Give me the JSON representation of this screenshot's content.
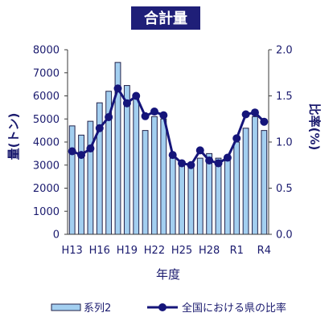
{
  "chart_data": {
    "type": "bar",
    "title": "合計量",
    "xlabel": "年度",
    "ylabel": "量(トン)",
    "y2label": "比率(%)",
    "categories": [
      "H13",
      "",
      "",
      "H16",
      "",
      "",
      "H19",
      "",
      "",
      "H22",
      "",
      "",
      "H25",
      "",
      "",
      "H28",
      "",
      "",
      "R1",
      "",
      "",
      "R4"
    ],
    "series": [
      {
        "name": "系列2",
        "type": "bar",
        "axis": "left",
        "values": [
          4700,
          4300,
          4900,
          5700,
          6200,
          7450,
          6450,
          5900,
          4500,
          5100,
          5000,
          3300,
          3100,
          3000,
          3300,
          3500,
          3300,
          3300,
          4000,
          4600,
          5100,
          4500
        ]
      },
      {
        "name": "全国における県の比率",
        "type": "line",
        "axis": "right",
        "values": [
          0.9,
          0.86,
          0.93,
          1.15,
          1.27,
          1.58,
          1.42,
          1.5,
          1.28,
          1.33,
          1.29,
          0.86,
          0.77,
          0.75,
          0.91,
          0.8,
          0.77,
          0.83,
          1.04,
          1.3,
          1.32,
          1.22
        ]
      }
    ],
    "ylim": [
      0,
      8000
    ],
    "y2lim": [
      0,
      2.0
    ],
    "y_ticks": [
      "0",
      "1000",
      "2000",
      "3000",
      "4000",
      "5000",
      "6000",
      "7000",
      "8000"
    ],
    "y2_ticks": [
      "0.0",
      "0.5",
      "1.0",
      "1.5",
      "2.0"
    ],
    "grid": false,
    "legend": "bottom",
    "colors": {
      "title_background": "#1f1f78",
      "bar_fill": "#a3cff0",
      "bar_outline": "#22224a",
      "line": "#15157a",
      "axis_text": "#1a1a6e"
    }
  }
}
